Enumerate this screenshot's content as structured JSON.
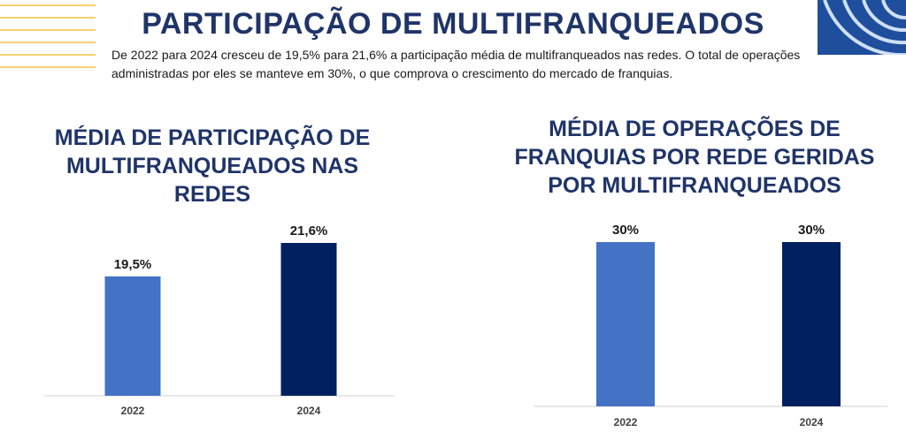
{
  "header": {
    "title": "PARTICIPAÇÃO DE MULTIFRANQUEADOS",
    "description": "De 2022 para 2024 cresceu de 19,5% para 21,6% a participação média de multifranqueados nas redes. O total de operações administradas por eles se manteve em 30%, o que comprova o crescimento do mercado de franquias."
  },
  "colors": {
    "title": "#1f3468",
    "bar_2022": "#4472c4",
    "bar_2024": "#002060",
    "deco_lines": "#f5c242",
    "deco_arcs_bg": "#1f4e9c"
  },
  "chart_data": [
    {
      "type": "bar",
      "title": "MÉDIA DE PARTICIPAÇÃO DE MULTIFRANQUEADOS NAS REDES",
      "categories": [
        "2022",
        "2024"
      ],
      "values": [
        19.5,
        21.6
      ],
      "value_labels": [
        "19,5%",
        "21,6%"
      ],
      "bar_colors": [
        "#4472c4",
        "#002060"
      ],
      "xlabel": "",
      "ylabel": "",
      "ylim": [
        12,
        23
      ]
    },
    {
      "type": "bar",
      "title": "MÉDIA DE OPERAÇÕES DE FRANQUIAS POR REDE GERIDAS POR MULTIFRANQUEADOS",
      "categories": [
        "2022",
        "2024"
      ],
      "values": [
        30,
        30
      ],
      "value_labels": [
        "30%",
        "30%"
      ],
      "bar_colors": [
        "#4472c4",
        "#002060"
      ],
      "xlabel": "",
      "ylabel": "",
      "ylim": [
        0,
        32
      ]
    }
  ]
}
